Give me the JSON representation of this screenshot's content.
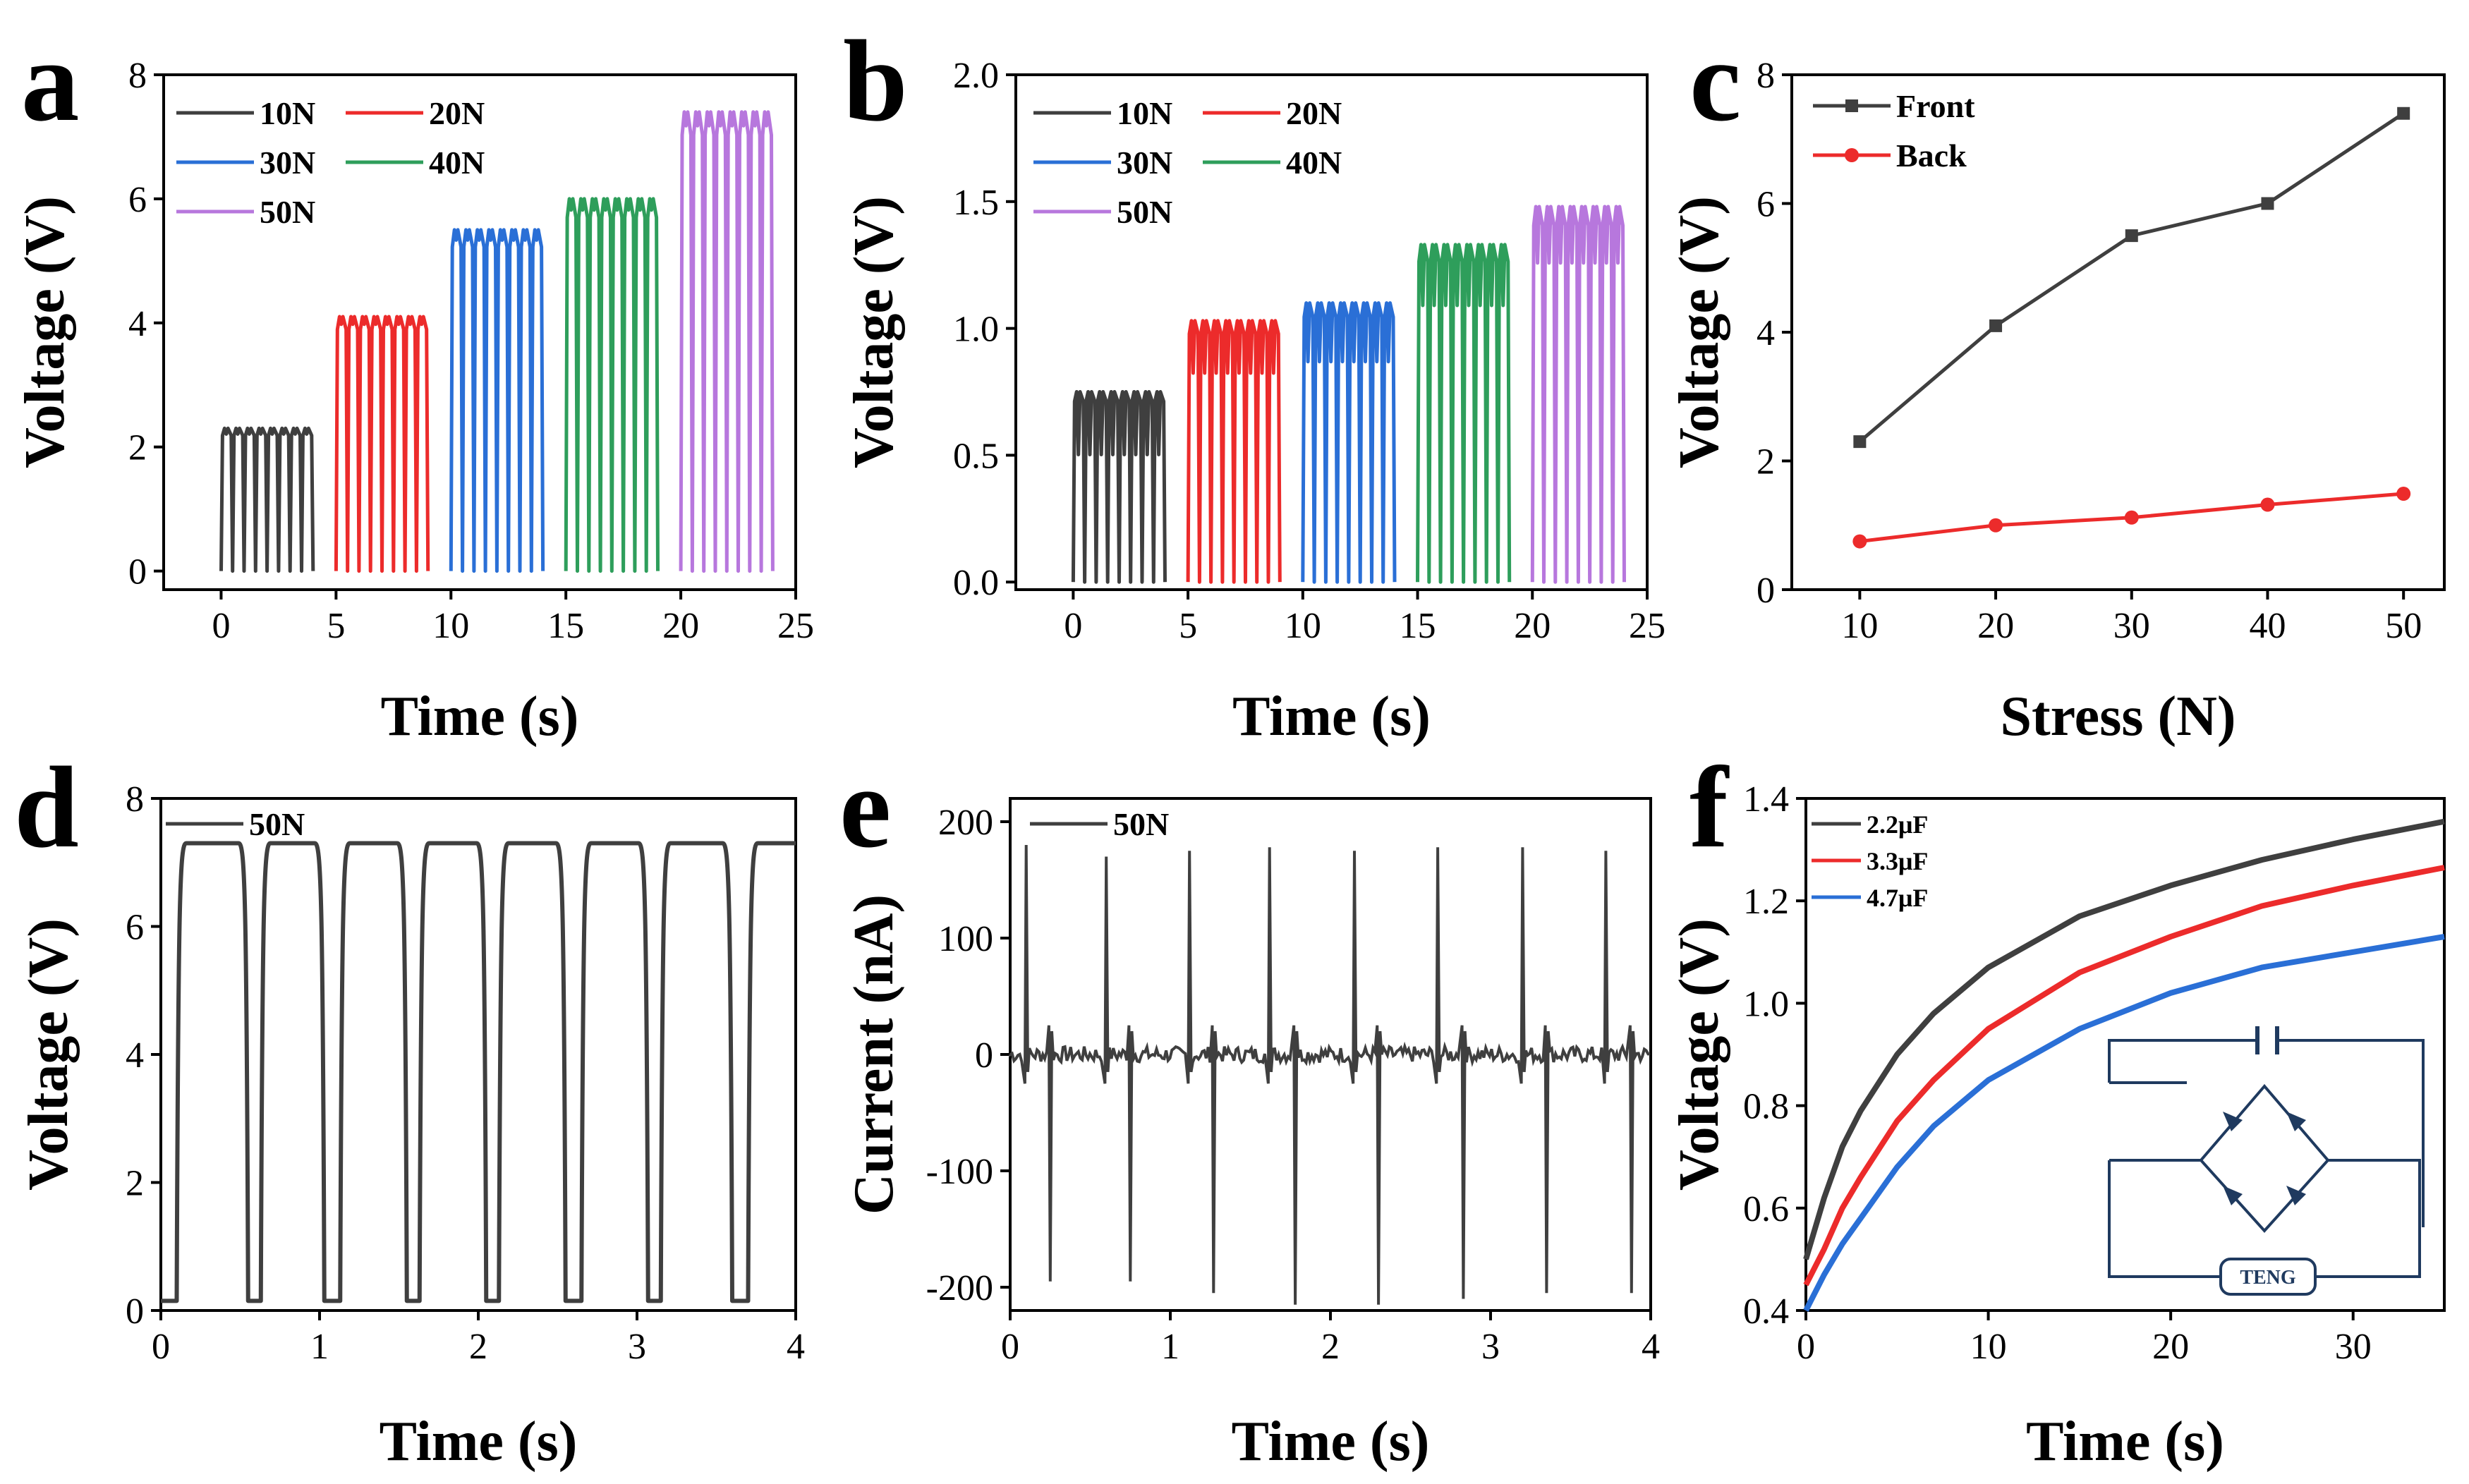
{
  "figure_title": "",
  "colors": {
    "gray": "#3f3f3f",
    "red": "#ec2b2b",
    "blue": "#2a6fd6",
    "green": "#2e9e5b",
    "purple": "#b777dd",
    "circuit": "#1f3a5f"
  },
  "chart_data": [
    {
      "id": "a",
      "panel_label": "a",
      "type": "line",
      "title": "",
      "xlabel": "Time (s)",
      "ylabel": "Voltage (V)",
      "xlim": [
        -2.5,
        25
      ],
      "ylim": [
        -0.3,
        8
      ],
      "xticks": [
        0,
        5,
        10,
        15,
        20,
        25
      ],
      "yticks": [
        0,
        2,
        4,
        6,
        8
      ],
      "xtick_labels": [
        "0",
        "5",
        "10",
        "15",
        "20",
        "25"
      ],
      "ytick_labels": [
        "0",
        "2",
        "4",
        "6",
        "8"
      ],
      "legend": {
        "location": "top-left",
        "entries": [
          "10N",
          "20N",
          "30N",
          "40N",
          "50N"
        ]
      },
      "series": [
        {
          "name": "10N",
          "color": "gray",
          "t_start": 0,
          "t_end": 4,
          "peak": 2.3,
          "pulses": 8,
          "dip_ratio": 0.96
        },
        {
          "name": "20N",
          "color": "red",
          "t_start": 5,
          "t_end": 9,
          "peak": 4.1,
          "pulses": 8,
          "dip_ratio": 0.97
        },
        {
          "name": "30N",
          "color": "blue",
          "t_start": 10,
          "t_end": 14,
          "peak": 5.5,
          "pulses": 8,
          "dip_ratio": 0.97
        },
        {
          "name": "40N",
          "color": "green",
          "t_start": 15,
          "t_end": 19,
          "peak": 6.0,
          "pulses": 8,
          "dip_ratio": 0.97
        },
        {
          "name": "50N",
          "color": "purple",
          "t_start": 20,
          "t_end": 24,
          "peak": 7.4,
          "pulses": 8,
          "dip_ratio": 0.97
        }
      ]
    },
    {
      "id": "b",
      "panel_label": "b",
      "type": "line",
      "title": "",
      "xlabel": "Time (s)",
      "ylabel": "Voltage (V)",
      "xlim": [
        -2.5,
        25
      ],
      "ylim": [
        -0.03,
        2.0
      ],
      "xticks": [
        0,
        5,
        10,
        15,
        20,
        25
      ],
      "yticks": [
        0,
        0.5,
        1.0,
        1.5,
        2.0
      ],
      "xtick_labels": [
        "0",
        "5",
        "10",
        "15",
        "20",
        "25"
      ],
      "ytick_labels": [
        "0.0",
        "0.5",
        "1.0",
        "1.5",
        "2.0"
      ],
      "legend": {
        "location": "top-left",
        "entries": [
          "10N",
          "20N",
          "30N",
          "40N",
          "50N"
        ]
      },
      "series": [
        {
          "name": "10N",
          "color": "gray",
          "t_start": 0,
          "t_end": 4,
          "peak": 0.75,
          "pulses": 8,
          "dip_ratio": 0.67
        },
        {
          "name": "20N",
          "color": "red",
          "t_start": 5,
          "t_end": 9,
          "peak": 1.03,
          "pulses": 8,
          "dip_ratio": 0.8
        },
        {
          "name": "30N",
          "color": "blue",
          "t_start": 10,
          "t_end": 14,
          "peak": 1.1,
          "pulses": 8,
          "dip_ratio": 0.79
        },
        {
          "name": "40N",
          "color": "green",
          "t_start": 15,
          "t_end": 19,
          "peak": 1.33,
          "pulses": 8,
          "dip_ratio": 0.82
        },
        {
          "name": "50N",
          "color": "purple",
          "t_start": 20,
          "t_end": 24,
          "peak": 1.48,
          "pulses": 8,
          "dip_ratio": 0.85
        }
      ]
    },
    {
      "id": "c",
      "panel_label": "c",
      "type": "line",
      "title": "",
      "xlabel": "Stress (N)",
      "ylabel": "Voltage (V)",
      "xlim": [
        5,
        53
      ],
      "ylim": [
        0,
        8
      ],
      "xticks": [
        10,
        20,
        30,
        40,
        50
      ],
      "yticks": [
        0,
        2,
        4,
        6,
        8
      ],
      "xtick_labels": [
        "10",
        "20",
        "30",
        "40",
        "50"
      ],
      "ytick_labels": [
        "0",
        "2",
        "4",
        "6",
        "8"
      ],
      "legend": {
        "location": "top-left",
        "entries": [
          "Front",
          "Back"
        ]
      },
      "x": [
        10,
        20,
        30,
        40,
        50
      ],
      "series": [
        {
          "name": "Front",
          "color": "gray",
          "marker": "square",
          "values": [
            2.3,
            4.1,
            5.5,
            6.0,
            7.4
          ]
        },
        {
          "name": "Back",
          "color": "red",
          "marker": "circle",
          "values": [
            0.75,
            1.0,
            1.12,
            1.32,
            1.49
          ]
        }
      ]
    },
    {
      "id": "d",
      "panel_label": "d",
      "type": "line",
      "title": "",
      "xlabel": "Time (s)",
      "ylabel": "Voltage (V)",
      "xlim": [
        0,
        4
      ],
      "ylim": [
        0,
        8
      ],
      "xticks": [
        0,
        1,
        2,
        3,
        4
      ],
      "yticks": [
        0,
        2,
        4,
        6,
        8
      ],
      "xtick_labels": [
        "0",
        "1",
        "2",
        "3",
        "4"
      ],
      "ytick_labels": [
        "0",
        "2",
        "4",
        "6",
        "8"
      ],
      "legend": {
        "location": "top-left",
        "entries": [
          "50N"
        ]
      },
      "series": [
        {
          "name": "50N",
          "color": "gray",
          "high": 7.3,
          "low": 0.15,
          "rise_times": [
            0.1,
            0.63,
            1.13,
            1.63,
            2.13,
            2.65,
            3.15,
            3.7
          ],
          "fall_times": [
            0.55,
            1.03,
            1.55,
            2.05,
            2.55,
            3.07,
            3.6
          ]
        }
      ]
    },
    {
      "id": "e",
      "panel_label": "e",
      "type": "line",
      "title": "",
      "xlabel": "Time (s)",
      "ylabel": "Current (nA)",
      "xlim": [
        0,
        4
      ],
      "ylim": [
        -220,
        220
      ],
      "xticks": [
        0,
        1,
        2,
        3,
        4
      ],
      "yticks": [
        -200,
        -100,
        0,
        100,
        200
      ],
      "xtick_labels": [
        "0",
        "1",
        "2",
        "3",
        "4"
      ],
      "ytick_labels": [
        "-200",
        "-100",
        "0",
        "100",
        "200"
      ],
      "legend": {
        "location": "top-left",
        "entries": [
          "50N"
        ]
      },
      "series": [
        {
          "name": "50N",
          "color": "gray",
          "positive_peaks": [
            [
              0.1,
              180
            ],
            [
              0.6,
              170
            ],
            [
              1.12,
              175
            ],
            [
              1.62,
              178
            ],
            [
              2.15,
              175
            ],
            [
              2.67,
              178
            ],
            [
              3.2,
              178
            ],
            [
              3.72,
              175
            ]
          ],
          "negative_peaks": [
            [
              0.25,
              -195
            ],
            [
              0.75,
              -195
            ],
            [
              1.27,
              -205
            ],
            [
              1.78,
              -215
            ],
            [
              2.3,
              -215
            ],
            [
              2.83,
              -210
            ],
            [
              3.35,
              -205
            ],
            [
              3.88,
              -205
            ]
          ]
        }
      ]
    },
    {
      "id": "f",
      "panel_label": "f",
      "type": "line",
      "title": "",
      "xlabel": "Time (s)",
      "ylabel": "Voltage (V)",
      "xlim": [
        0,
        35
      ],
      "ylim": [
        0.4,
        1.4
      ],
      "xticks": [
        0,
        10,
        20,
        30
      ],
      "yticks": [
        0.4,
        0.6,
        0.8,
        1.0,
        1.2,
        1.4
      ],
      "xtick_labels": [
        "0",
        "10",
        "20",
        "30"
      ],
      "ytick_labels": [
        "0.4",
        "0.6",
        "0.8",
        "1.0",
        "1.2",
        "1.4"
      ],
      "legend": {
        "location": "top-left",
        "entries": [
          "2.2μF",
          "3.3μF",
          "4.7μF"
        ]
      },
      "series": [
        {
          "name": "2.2μF",
          "color": "gray",
          "t": [
            0,
            1,
            2,
            3,
            5,
            7,
            10,
            15,
            20,
            25,
            30,
            35
          ],
          "values": [
            0.5,
            0.62,
            0.72,
            0.79,
            0.9,
            0.98,
            1.07,
            1.17,
            1.23,
            1.28,
            1.32,
            1.355
          ]
        },
        {
          "name": "3.3μF",
          "color": "red",
          "t": [
            0,
            1,
            2,
            3,
            5,
            7,
            10,
            15,
            20,
            25,
            30,
            35
          ],
          "values": [
            0.45,
            0.52,
            0.6,
            0.66,
            0.77,
            0.85,
            0.95,
            1.06,
            1.13,
            1.19,
            1.23,
            1.265
          ]
        },
        {
          "name": "4.7μF",
          "color": "blue",
          "t": [
            0,
            1,
            2,
            3,
            5,
            7,
            10,
            15,
            20,
            25,
            30,
            35
          ],
          "values": [
            0.4,
            0.47,
            0.53,
            0.58,
            0.68,
            0.76,
            0.85,
            0.95,
            1.02,
            1.07,
            1.1,
            1.13
          ]
        }
      ],
      "inset": {
        "type": "circuit",
        "label": "TENG",
        "description": "bridge rectifier with capacitor"
      }
    }
  ]
}
